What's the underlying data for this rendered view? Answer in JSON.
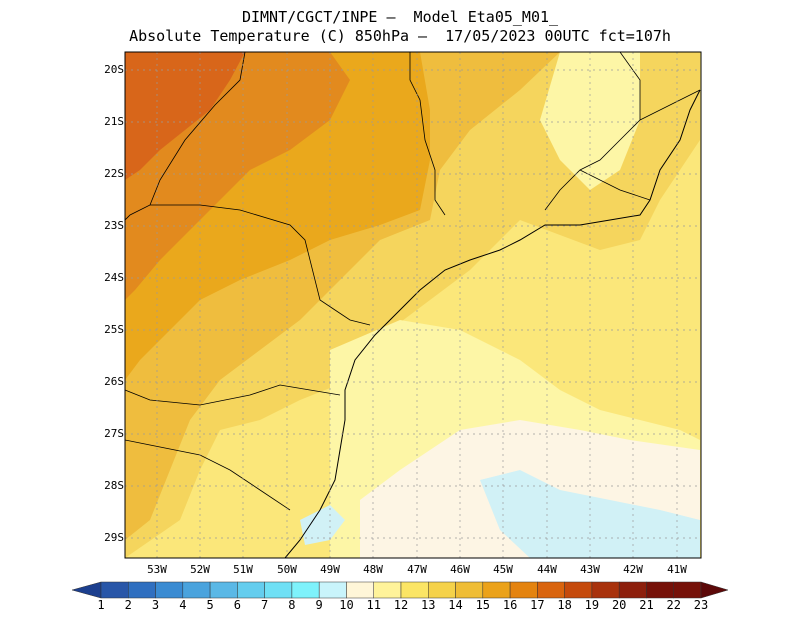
{
  "header": {
    "line1": "DIMNT/CGCT/INPE –  Model Eta05_M01_",
    "line2": "Absolute Temperature (C) 850hPa –  17/05/2023 00UTC fct=107h"
  },
  "map": {
    "lat_labels": [
      "20S",
      "21S",
      "22S",
      "23S",
      "24S",
      "25S",
      "26S",
      "27S",
      "28S",
      "29S"
    ],
    "lon_labels": [
      "53W",
      "52W",
      "51W",
      "50W",
      "49W",
      "48W",
      "47W",
      "46W",
      "45W",
      "44W",
      "43W",
      "42W",
      "41W"
    ],
    "field_colors": {
      "c11": "#fdf5e4",
      "c12": "#fdf6a6",
      "c13": "#fbe77a",
      "c14": "#f5d55d",
      "c15": "#efbd3e",
      "c16": "#eaa81c",
      "c17": "#e28a1e",
      "c18": "#d8661a",
      "c10": "#d1f1f6"
    }
  },
  "colorbar": {
    "labels": [
      "1",
      "2",
      "3",
      "4",
      "5",
      "6",
      "7",
      "8",
      "9",
      "10",
      "11",
      "12",
      "13",
      "14",
      "15",
      "16",
      "17",
      "18",
      "19",
      "20",
      "21",
      "22",
      "23"
    ],
    "colors": [
      "#1c3f8e",
      "#2856a8",
      "#2f6fc0",
      "#3a8bd2",
      "#4aa3dd",
      "#5ab8e6",
      "#64cdee",
      "#6fe0f5",
      "#7ef2fb",
      "#c9f4fb",
      "#fff6d8",
      "#fff39a",
      "#fbe565",
      "#f5d24a",
      "#efbd36",
      "#eba21a",
      "#e4830f",
      "#d9640e",
      "#c54a0c",
      "#a8320c",
      "#8d1f0c",
      "#761108",
      "#5c0808"
    ]
  }
}
